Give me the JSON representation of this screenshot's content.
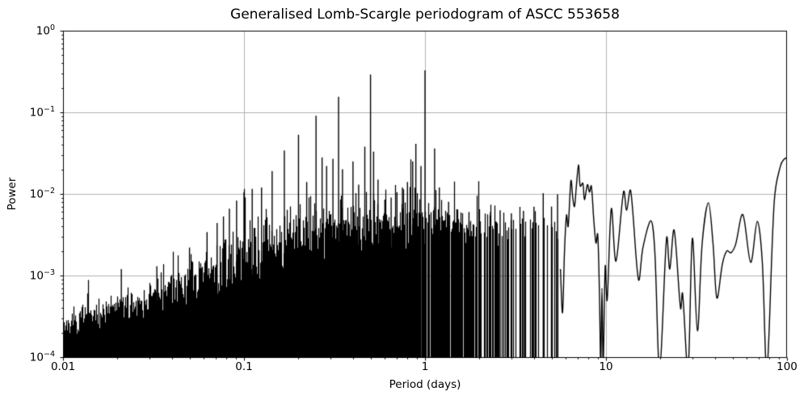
{
  "chart_data": {
    "type": "line",
    "title": "Generalised Lomb-Scargle periodogram of ASCC 553658",
    "xlabel": "Period (days)",
    "ylabel": "Power",
    "xscale": "log",
    "yscale": "log",
    "xlim": [
      0.01,
      100
    ],
    "ylim": [
      0.0001,
      1
    ],
    "grid": true,
    "grid_color": "#b0b0b0",
    "series_color": "#000000",
    "x_ticks": [
      {
        "v": 0.01,
        "label": "0.01"
      },
      {
        "v": 0.1,
        "label": "0.1"
      },
      {
        "v": 1,
        "label": "1"
      },
      {
        "v": 10,
        "label": "10"
      },
      {
        "v": 100,
        "label": "100"
      }
    ],
    "y_ticks": [
      {
        "v": 1,
        "base": "10",
        "exp": "0"
      },
      {
        "v": 0.1,
        "base": "10",
        "exp": "−1"
      },
      {
        "v": 0.01,
        "base": "10",
        "exp": "−2"
      },
      {
        "v": 0.001,
        "base": "10",
        "exp": "−3"
      },
      {
        "v": 0.0001,
        "base": "10",
        "exp": "−4"
      }
    ],
    "dense_region": {
      "start": 0.01,
      "end": 5.5
    },
    "noise_envelope": [
      [
        0.01,
        0.00024
      ],
      [
        0.015,
        0.00032
      ],
      [
        0.02,
        0.00042
      ],
      [
        0.03,
        0.00055
      ],
      [
        0.05,
        0.00085
      ],
      [
        0.07,
        0.0012
      ],
      [
        0.1,
        0.0019
      ],
      [
        0.14,
        0.0026
      ],
      [
        0.2,
        0.0032
      ],
      [
        0.3,
        0.0042
      ],
      [
        0.5,
        0.005
      ],
      [
        0.7,
        0.0055
      ],
      [
        1.0,
        0.0055
      ],
      [
        1.5,
        0.0045
      ],
      [
        2.5,
        0.0042
      ],
      [
        4.0,
        0.0045
      ],
      [
        5.5,
        0.004
      ]
    ],
    "main_peaks": [
      [
        0.021,
        0.0012
      ],
      [
        0.033,
        0.0013
      ],
      [
        0.05,
        0.0022
      ],
      [
        0.0625,
        0.0034
      ],
      [
        0.071,
        0.0044
      ],
      [
        0.077,
        0.0053
      ],
      [
        0.083,
        0.0066
      ],
      [
        0.091,
        0.0083
      ],
      [
        0.1,
        0.0105
      ],
      [
        0.111,
        0.0115
      ],
      [
        0.125,
        0.012
      ],
      [
        0.143,
        0.019
      ],
      [
        0.167,
        0.034
      ],
      [
        0.2,
        0.053
      ],
      [
        0.222,
        0.014
      ],
      [
        0.25,
        0.091
      ],
      [
        0.27,
        0.028
      ],
      [
        0.286,
        0.022
      ],
      [
        0.31,
        0.027
      ],
      [
        0.333,
        0.155
      ],
      [
        0.35,
        0.02
      ],
      [
        0.4,
        0.025
      ],
      [
        0.43,
        0.013
      ],
      [
        0.465,
        0.038
      ],
      [
        0.5,
        0.29
      ],
      [
        0.52,
        0.033
      ],
      [
        0.55,
        0.015
      ],
      [
        0.6,
        0.0085
      ],
      [
        0.65,
        0.009
      ],
      [
        0.7,
        0.0105
      ],
      [
        0.75,
        0.012
      ],
      [
        0.8,
        0.014
      ],
      [
        0.855,
        0.025
      ],
      [
        0.89,
        0.041
      ],
      [
        0.95,
        0.022
      ],
      [
        1.0,
        0.327
      ],
      [
        1.13,
        0.036
      ],
      [
        1.2,
        0.012
      ],
      [
        1.35,
        0.008
      ],
      [
        1.5,
        0.0065
      ],
      [
        1.75,
        0.006
      ],
      [
        2.0,
        0.0065
      ],
      [
        2.3,
        0.006
      ],
      [
        2.6,
        0.0063
      ],
      [
        3.0,
        0.0058
      ],
      [
        3.5,
        0.0062
      ],
      [
        4.0,
        0.007
      ],
      [
        4.5,
        0.0102
      ],
      [
        5.0,
        0.007
      ],
      [
        5.4,
        0.0099
      ]
    ],
    "smooth_curve": [
      [
        5.6,
        0.0012
      ],
      [
        5.75,
        0.00035
      ],
      [
        5.9,
        0.002
      ],
      [
        6.05,
        0.0055
      ],
      [
        6.18,
        0.004
      ],
      [
        6.4,
        0.0145
      ],
      [
        6.55,
        0.009
      ],
      [
        6.7,
        0.007
      ],
      [
        6.85,
        0.012
      ],
      [
        7.05,
        0.0227
      ],
      [
        7.2,
        0.0125
      ],
      [
        7.45,
        0.0135
      ],
      [
        7.6,
        0.0085
      ],
      [
        7.9,
        0.013
      ],
      [
        8.1,
        0.0105
      ],
      [
        8.3,
        0.0125
      ],
      [
        8.55,
        0.005
      ],
      [
        8.8,
        0.0025
      ],
      [
        9.0,
        0.0032
      ],
      [
        9.2,
        0.0006
      ],
      [
        9.35,
        8e-05
      ],
      [
        9.5,
        0.0007
      ],
      [
        9.65,
        8e-05
      ],
      [
        9.9,
        0.0013
      ],
      [
        10.15,
        0.0005
      ],
      [
        10.7,
        0.0066
      ],
      [
        11.35,
        0.0015
      ],
      [
        12.5,
        0.0106
      ],
      [
        13.0,
        0.0063
      ],
      [
        13.7,
        0.0108
      ],
      [
        15.1,
        0.0009
      ],
      [
        16.0,
        0.0022
      ],
      [
        17.7,
        0.0047
      ],
      [
        18.6,
        0.002
      ],
      [
        19.8,
        7e-05
      ],
      [
        21.6,
        0.00285
      ],
      [
        22.5,
        0.0012
      ],
      [
        23.8,
        0.0036
      ],
      [
        25.8,
        0.0004
      ],
      [
        26.5,
        0.0006
      ],
      [
        28.4,
        7e-05
      ],
      [
        30.0,
        0.00285
      ],
      [
        32.0,
        0.00021
      ],
      [
        34.0,
        0.0025
      ],
      [
        36.8,
        0.0078
      ],
      [
        39.0,
        0.0025
      ],
      [
        41.0,
        0.00053
      ],
      [
        44.0,
        0.0014
      ],
      [
        46.5,
        0.002
      ],
      [
        49.0,
        0.0019
      ],
      [
        52.0,
        0.0024
      ],
      [
        57.0,
        0.0056
      ],
      [
        63.0,
        0.00145
      ],
      [
        68.5,
        0.0046
      ],
      [
        73.0,
        0.0015
      ],
      [
        77.5,
        7e-05
      ],
      [
        85.0,
        0.008
      ],
      [
        92.0,
        0.022
      ],
      [
        97.0,
        0.027
      ],
      [
        100.0,
        0.0275
      ]
    ]
  }
}
